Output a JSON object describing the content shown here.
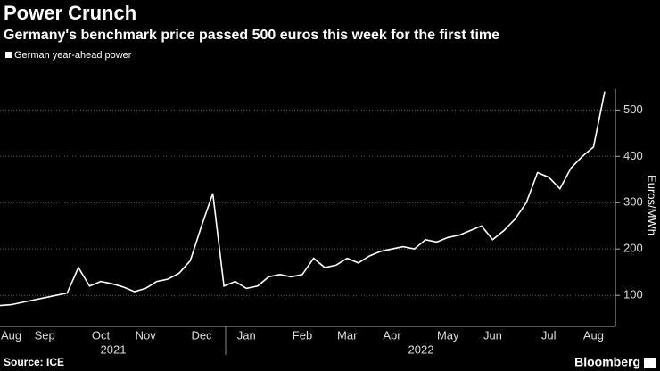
{
  "chart_data": {
    "type": "line",
    "title": "Power Crunch",
    "subtitle": "Germany's benchmark price passed 500 euros this week for the first time",
    "y_label": "Euros/MWh",
    "source": "Source: ICE",
    "brand": "Bloomberg",
    "years": [
      "2021",
      "2022"
    ],
    "categories": [
      null,
      "Aug",
      null,
      null,
      "Sep",
      null,
      null,
      null,
      null,
      "Oct",
      null,
      null,
      null,
      "Nov",
      null,
      null,
      null,
      null,
      "Dec",
      null,
      null,
      null,
      "Jan",
      null,
      null,
      null,
      null,
      "Feb",
      null,
      null,
      null,
      "Mar",
      null,
      null,
      null,
      "Apr",
      null,
      null,
      null,
      null,
      "May",
      null,
      null,
      null,
      "Jun",
      null,
      null,
      null,
      null,
      "Jul",
      null,
      null,
      null,
      "Aug",
      null
    ],
    "series": [
      {
        "name": "German year-ahead power",
        "color": "#ffffff",
        "values": [
          78,
          80,
          85,
          90,
          95,
          100,
          105,
          160,
          120,
          130,
          125,
          118,
          108,
          115,
          130,
          135,
          148,
          175,
          250,
          320,
          120,
          130,
          115,
          120,
          140,
          145,
          140,
          145,
          180,
          160,
          165,
          180,
          170,
          185,
          195,
          200,
          205,
          200,
          220,
          215,
          225,
          230,
          240,
          250,
          220,
          240,
          265,
          300,
          365,
          355,
          330,
          375,
          400,
          420,
          540
        ]
      }
    ],
    "ylim": [
      33,
      545
    ],
    "yticks": [
      100,
      200,
      300,
      400,
      500
    ],
    "grid": true
  }
}
